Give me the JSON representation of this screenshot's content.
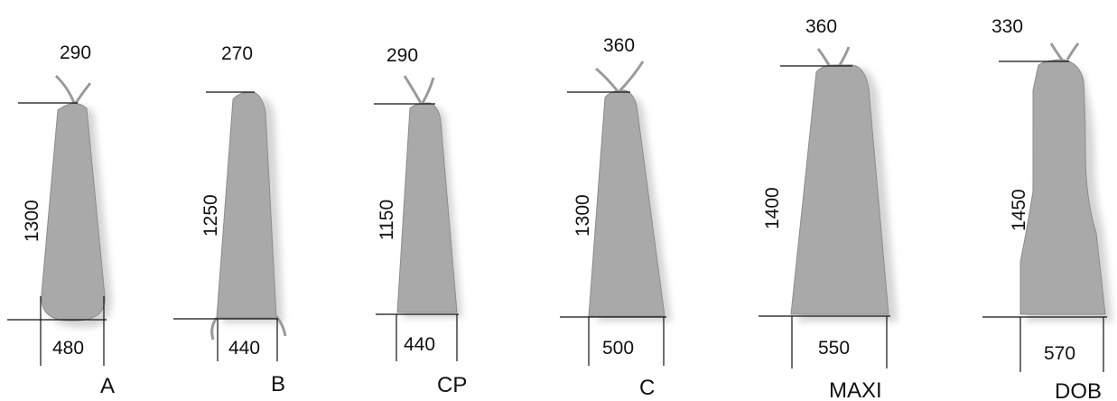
{
  "colors": {
    "board_fill": "#a9a9a9",
    "board_edge": "#8c8c8c",
    "shadow": "#d9d9d9",
    "line": "#111111",
    "tie": "#9a9a9a"
  },
  "boards": [
    {
      "name": "A",
      "top_width": "290",
      "height": "1300",
      "bottom_width": "480"
    },
    {
      "name": "B",
      "top_width": "270",
      "height": "1250",
      "bottom_width": "440"
    },
    {
      "name": "CP",
      "top_width": "290",
      "height": "1150",
      "bottom_width": "440"
    },
    {
      "name": "C",
      "top_width": "360",
      "height": "1300",
      "bottom_width": "500"
    },
    {
      "name": "MAXI",
      "top_width": "360",
      "height": "1400",
      "bottom_width": "550"
    },
    {
      "name": "DOB",
      "top_width": "330",
      "height": "1450",
      "bottom_width": "570"
    }
  ]
}
